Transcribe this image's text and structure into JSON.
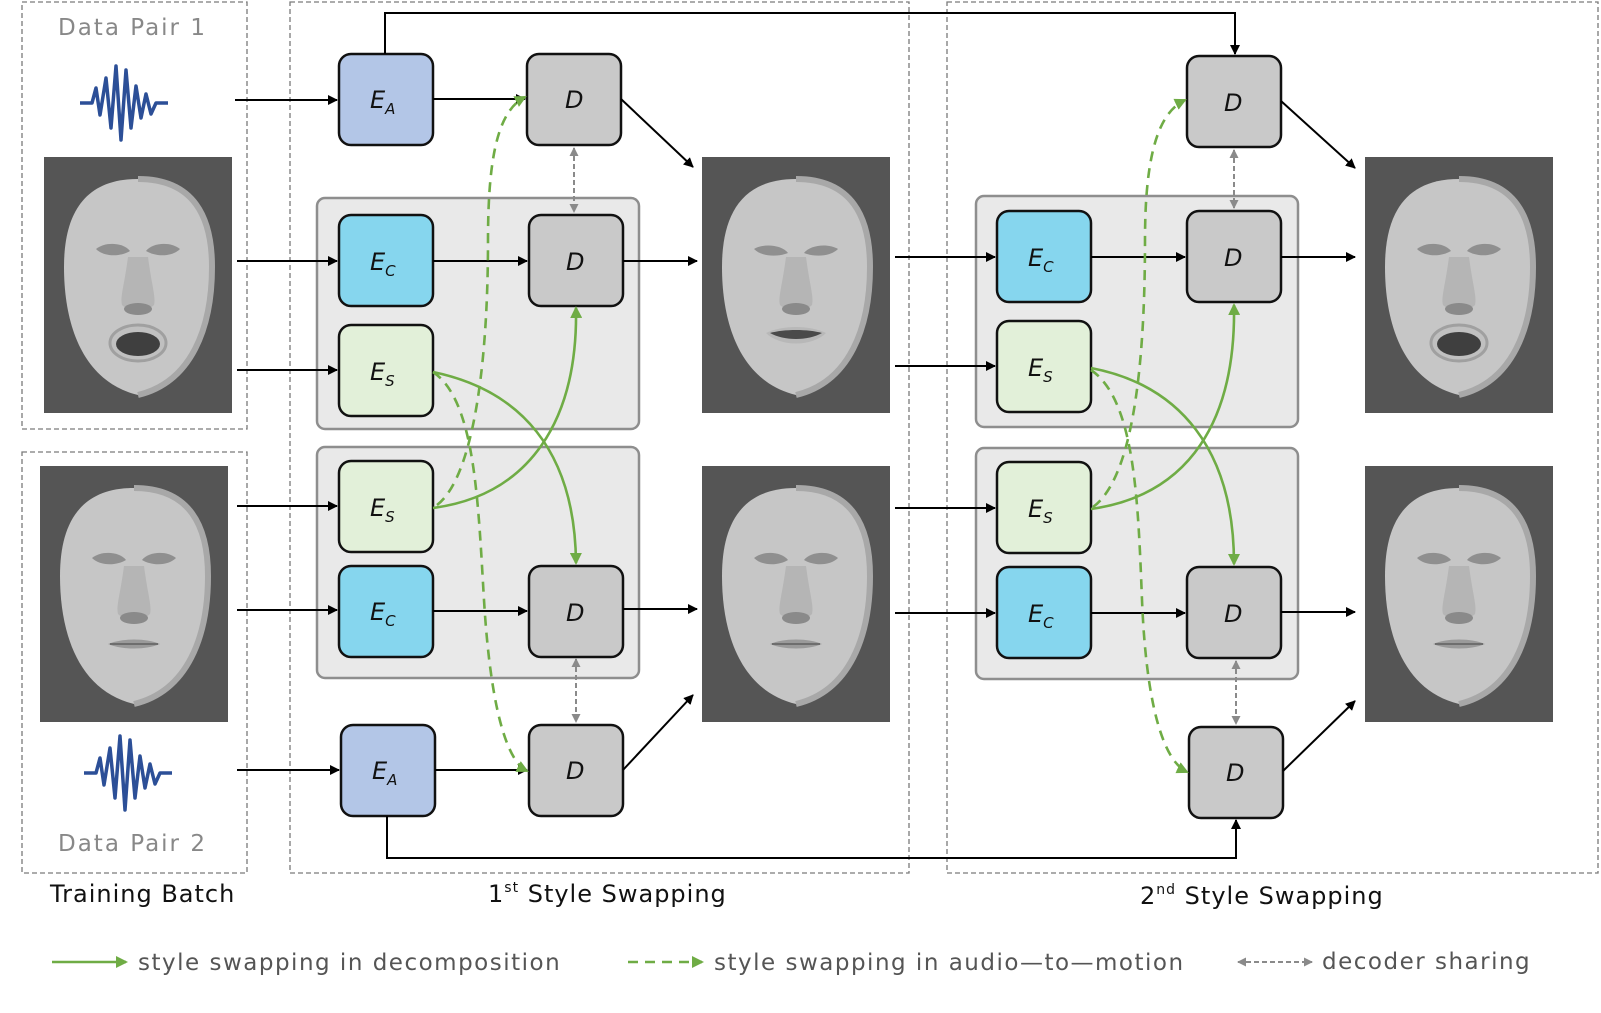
{
  "labels": {
    "data_pair_1": "Data Pair 1",
    "data_pair_2": "Data Pair 2",
    "training_batch": "Training Batch",
    "first_swap_prefix": "1",
    "first_swap_sup": "st",
    "first_swap_rest": " Style Swapping",
    "second_swap_prefix": "2",
    "second_swap_sup": "nd",
    "second_swap_rest": " Style Swapping"
  },
  "blocks": {
    "audio_encoder": {
      "main": "E",
      "sub": "A",
      "color": "#b3c6e7"
    },
    "content_encoder": {
      "main": "E",
      "sub": "C",
      "color": "#86d6ee"
    },
    "style_encoder": {
      "main": "E",
      "sub": "S",
      "color": "#e2f0d9"
    },
    "decoder": {
      "main": "D",
      "color": "#c9c9c9"
    }
  },
  "legend": {
    "solid_green": "style swapping in decomposition",
    "dashed_green": "style swapping in audio—to—motion",
    "gray_dashed": "decoder sharing"
  },
  "colors": {
    "green": "#6fac45",
    "share_gray": "#8a8a8a",
    "wave_blue": "#2c4f97",
    "face_bg": "#555555"
  }
}
